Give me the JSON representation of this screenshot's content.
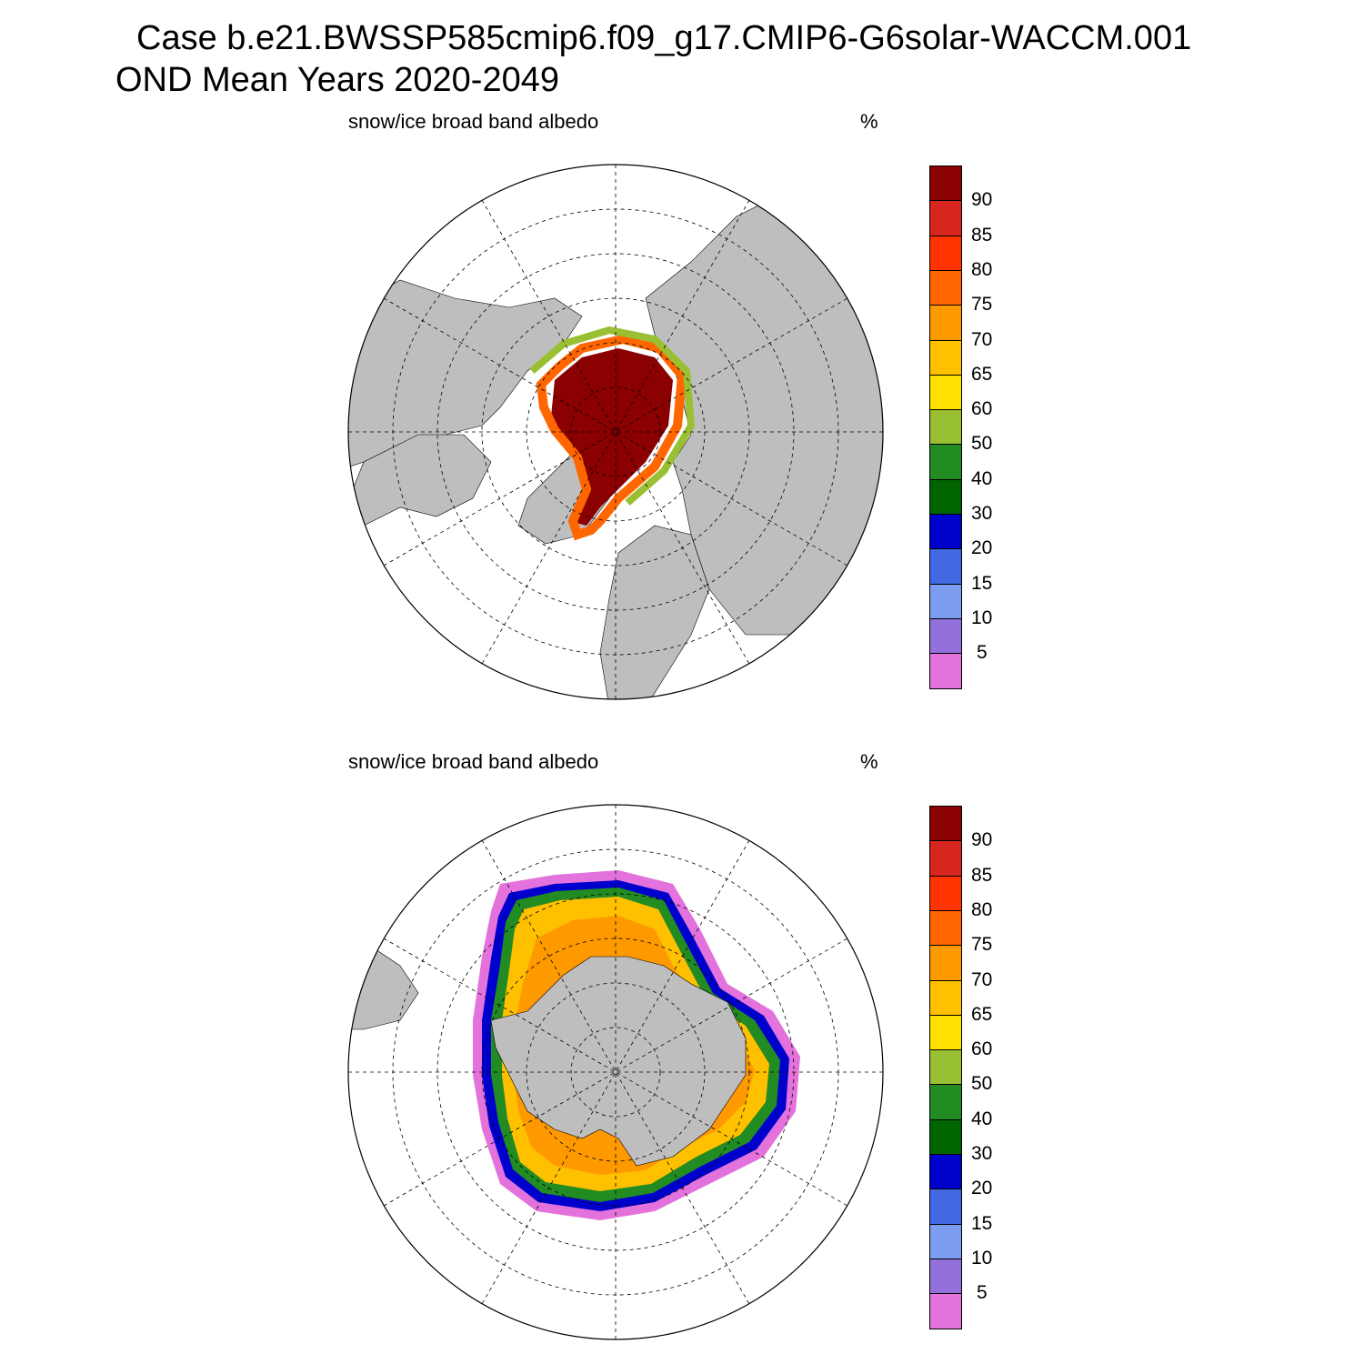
{
  "title": {
    "line1": "Case b.e21.BWSSP585cmip6.f09_g17.CMIP6-G6solar-WACCM.001",
    "line2": "OND Mean   Years 2020-2049"
  },
  "panels": [
    {
      "name": "north",
      "variable": "snow/ice broad band albedo",
      "units": "%"
    },
    {
      "name": "south",
      "variable": "snow/ice broad band albedo",
      "units": "%"
    }
  ],
  "colorbar": {
    "labels": [
      "90",
      "85",
      "80",
      "75",
      "70",
      "65",
      "60",
      "50",
      "40",
      "30",
      "20",
      "15",
      "10",
      "5"
    ],
    "colors": [
      "#8b0000",
      "#d7261e",
      "#ff3300",
      "#ff6600",
      "#ff9900",
      "#ffc000",
      "#ffe000",
      "#99c033",
      "#228b22",
      "#006400",
      "#0000cd",
      "#4169e1",
      "#7b9cf0",
      "#9370db",
      "#e372dc"
    ]
  },
  "colors": {
    "land": "#bebebe",
    "ocean": "#ffffff"
  }
}
